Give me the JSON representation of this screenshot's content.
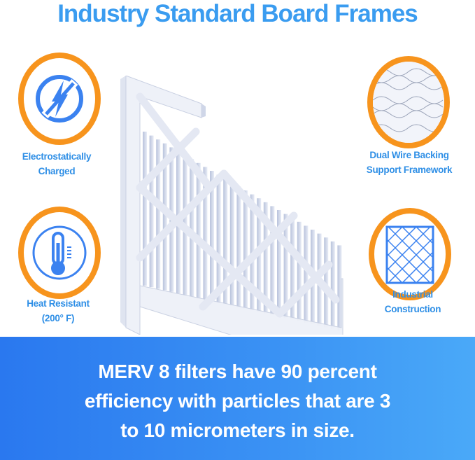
{
  "title": "Industry Standard Board Frames",
  "features": [
    {
      "icon": "electrostatic-bolt-icon",
      "line1": "Electrostatically",
      "line2": "Charged"
    },
    {
      "icon": "thermometer-icon",
      "line1": "Heat Resistant",
      "line2": "(200° F)"
    },
    {
      "icon": "wire-mesh-icon",
      "line1": "Dual Wire Backing",
      "line2": "Support Framework"
    },
    {
      "icon": "grid-frame-icon",
      "line1": "Industrial",
      "line2": "Construction"
    }
  ],
  "banner": {
    "line1": "MERV 8 filters have 90 percent",
    "line2": "efficiency with particles that are 3",
    "line3": "to 10 micrometers in size."
  },
  "colors": {
    "title": "#3a9cf0",
    "ring": "#f7941d",
    "icon": "#3b82f0",
    "banner": "#2a78ef"
  }
}
